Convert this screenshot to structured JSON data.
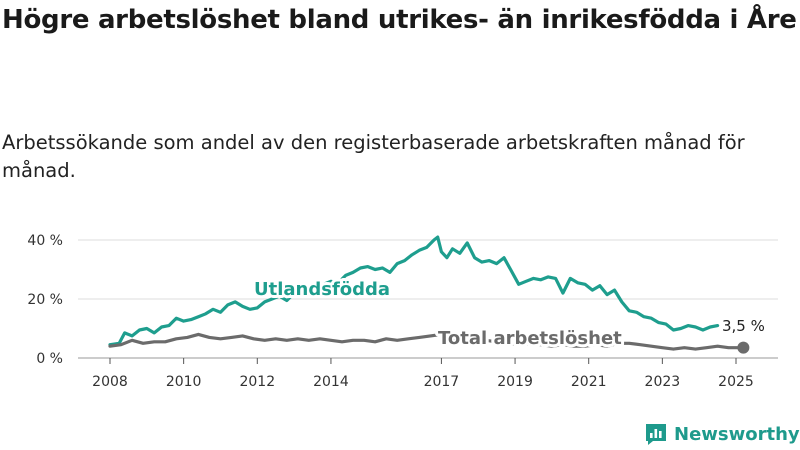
{
  "colors": {
    "foreign_born": "#1e9e8e",
    "total": "#6b6b6b",
    "grid": "#dddddd",
    "brand": "#1e9a8c"
  },
  "brand": {
    "name": "Newsworthy",
    "icon": "newsworthy-logo-icon"
  },
  "chart_data": {
    "type": "line",
    "title": "Högre arbetslöshet bland utrikes- än inrikesfödda i Åre",
    "subtitle": "Arbetssökande som andel av den registerbaserade arbetskraften månad för månad.",
    "xlabel": "",
    "ylabel": "",
    "xlim": [
      2007.75,
      2025.5
    ],
    "ylim": [
      0,
      44
    ],
    "grid": true,
    "x_ticks": [
      2008,
      2010,
      2012,
      2014,
      2017,
      2019,
      2021,
      2023,
      2025
    ],
    "y_ticks": [
      {
        "value": 0,
        "label": "0 %"
      },
      {
        "value": 20,
        "label": "20 %"
      },
      {
        "value": 40,
        "label": "40 %"
      }
    ],
    "end_label": "3,5 %",
    "series": [
      {
        "name": "Utlandsfödda",
        "key": "foreign_born",
        "x": [
          2008.0,
          2008.25,
          2008.4,
          2008.6,
          2008.8,
          2009.0,
          2009.2,
          2009.4,
          2009.6,
          2009.8,
          2010.0,
          2010.2,
          2010.4,
          2010.6,
          2010.8,
          2011.0,
          2011.2,
          2011.4,
          2011.6,
          2011.8,
          2012.0,
          2012.2,
          2012.4,
          2012.6,
          2012.8,
          2013.0,
          2013.2,
          2013.4,
          2013.6,
          2013.8,
          2014.0,
          2014.2,
          2014.4,
          2014.6,
          2014.8,
          2015.0,
          2015.2,
          2015.4,
          2015.6,
          2015.8,
          2016.0,
          2016.2,
          2016.4,
          2016.6,
          2016.8,
          2016.9,
          2017.0,
          2017.15,
          2017.3,
          2017.5,
          2017.7,
          2017.9,
          2018.1,
          2018.3,
          2018.5,
          2018.7,
          2018.9,
          2019.1,
          2019.3,
          2019.5,
          2019.7,
          2019.9,
          2020.1,
          2020.3,
          2020.5,
          2020.7,
          2020.9,
          2021.1,
          2021.3,
          2021.5,
          2021.7,
          2021.9,
          2022.1,
          2022.3,
          2022.5,
          2022.7,
          2022.9,
          2023.1,
          2023.3,
          2023.5,
          2023.7,
          2023.9,
          2024.1,
          2024.3,
          2024.5
        ],
        "y": [
          4.5,
          5,
          8.5,
          7.5,
          9.5,
          10,
          8.5,
          10.5,
          11,
          13.5,
          12.5,
          13,
          14,
          15,
          16.5,
          15.5,
          18,
          19,
          17.5,
          16.5,
          17,
          19,
          20,
          21,
          19.5,
          22,
          21.5,
          23,
          24,
          25,
          26,
          25.5,
          28,
          29,
          30.5,
          31,
          30,
          30.5,
          29,
          32,
          33,
          35,
          36.5,
          37.5,
          40,
          41,
          36,
          34,
          37,
          35.5,
          39,
          34,
          32.5,
          33,
          32,
          34,
          29.5,
          25,
          26,
          27,
          26.5,
          27.5,
          27,
          22,
          27,
          25.5,
          25,
          23,
          24.5,
          21.5,
          23,
          19,
          16,
          15.5,
          14,
          13.5,
          12,
          11.5,
          9.5,
          10,
          11,
          10.5,
          9.5,
          10.5,
          11
        ]
      },
      {
        "name": "Total arbetslöshet",
        "key": "total",
        "x": [
          2008.0,
          2008.3,
          2008.6,
          2008.9,
          2009.2,
          2009.5,
          2009.8,
          2010.1,
          2010.4,
          2010.7,
          2011.0,
          2011.3,
          2011.6,
          2011.9,
          2012.2,
          2012.5,
          2012.8,
          2013.1,
          2013.4,
          2013.7,
          2014.0,
          2014.3,
          2014.6,
          2014.9,
          2015.2,
          2015.5,
          2015.8,
          2016.1,
          2016.4,
          2016.7,
          2017.0,
          2017.3,
          2017.6,
          2017.9,
          2018.2,
          2018.5,
          2018.8,
          2019.1,
          2019.4,
          2019.7,
          2020.0,
          2020.3,
          2020.6,
          2020.9,
          2021.2,
          2021.5,
          2021.8,
          2022.1,
          2022.4,
          2022.7,
          2023.0,
          2023.3,
          2023.6,
          2023.9,
          2024.2,
          2024.5,
          2024.8,
          2025.0,
          2025.2
        ],
        "y": [
          4,
          4.5,
          6,
          5,
          5.5,
          5.5,
          6.5,
          7,
          8,
          7,
          6.5,
          7,
          7.5,
          6.5,
          6,
          6.5,
          6,
          6.5,
          6,
          6.5,
          6,
          5.5,
          6,
          6,
          5.5,
          6.5,
          6,
          6.5,
          7,
          7.5,
          8,
          7,
          6,
          5.5,
          6,
          5.5,
          5,
          4.5,
          5,
          4.5,
          4,
          4.5,
          4,
          4,
          4.5,
          4,
          5,
          5,
          4.5,
          4,
          3.5,
          3,
          3.5,
          3,
          3.5,
          4,
          3.5,
          3.5,
          3.5
        ]
      }
    ]
  }
}
